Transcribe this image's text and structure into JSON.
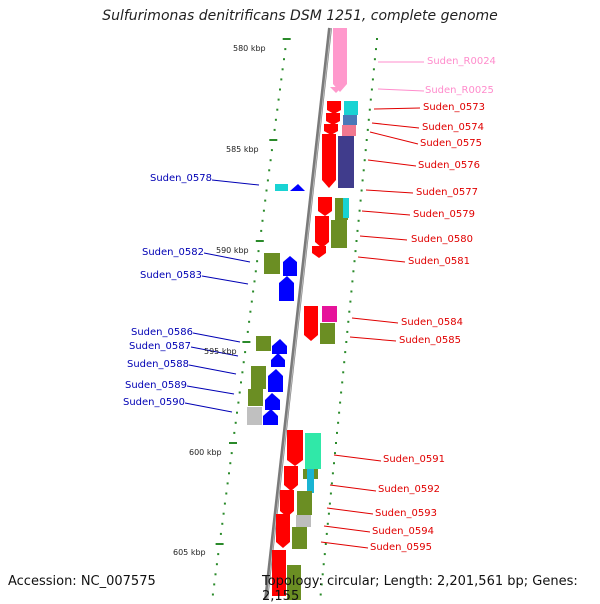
{
  "title": "Sulfurimonas denitrificans DSM 1251, complete genome",
  "accession_text": "Accession: NC_007575",
  "topology_text": "Topology: circular; Length: 2,201,561 bp; Genes: 2,155",
  "kbp_labels": [
    "580 kbp",
    "585 kbp",
    "590 kbp",
    "595 kbp",
    "600 kbp",
    "605 kbp"
  ],
  "colors": {
    "forward_cds": "#ff0000",
    "reverse_cds": "#0000ff",
    "rna": "#ff99cc",
    "backbone": "#808080",
    "tick": "#2a8a2a",
    "label_forward": "#e00000",
    "label_reverse": "#0000b4",
    "label_rna": "#ff8ccc"
  },
  "genes_right": [
    "Suden_R0024",
    "Suden_R0025",
    "Suden_0573",
    "Suden_0574",
    "Suden_0575",
    "Suden_0576",
    "Suden_0577",
    "Suden_0579",
    "Suden_0580",
    "Suden_0581",
    "Suden_0584",
    "Suden_0585",
    "Suden_0591",
    "Suden_0592",
    "Suden_0593",
    "Suden_0594",
    "Suden_0595"
  ],
  "genes_left": [
    "Suden_0578",
    "Suden_0582",
    "Suden_0583",
    "Suden_0586",
    "Suden_0587",
    "Suden_0588",
    "Suden_0589",
    "Suden_0590"
  ]
}
